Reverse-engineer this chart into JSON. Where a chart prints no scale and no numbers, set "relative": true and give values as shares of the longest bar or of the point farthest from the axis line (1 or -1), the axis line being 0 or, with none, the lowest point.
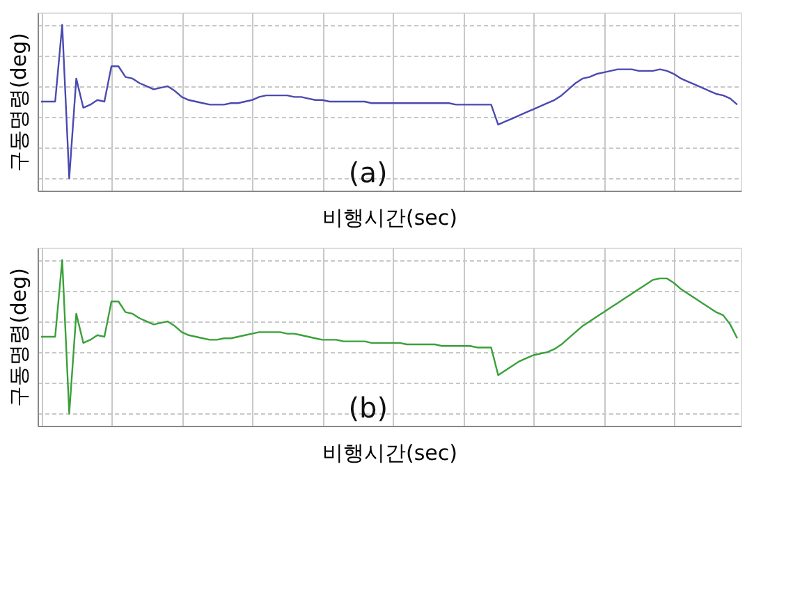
{
  "chart_data": [
    {
      "type": "line",
      "relative": true,
      "ylabel": "구동명령(deg)",
      "xlabel": "비행시간(sec)",
      "annotations": [
        "(a)"
      ],
      "grid": true,
      "tick_labels": false,
      "categories": [
        null,
        null,
        null,
        null,
        null,
        null,
        null,
        null,
        null,
        null,
        null,
        null,
        null,
        null,
        null,
        null,
        null,
        null,
        null,
        null,
        null,
        null,
        null,
        null,
        null,
        null,
        null,
        null,
        null,
        null,
        null,
        null,
        null,
        null,
        null,
        null,
        null,
        null,
        null,
        null,
        null,
        null,
        null,
        null,
        null,
        null,
        null,
        null,
        null,
        null,
        null,
        null,
        null,
        null,
        null,
        null,
        null,
        null,
        null,
        null,
        null,
        null,
        null,
        null,
        null,
        null,
        null,
        null,
        null,
        null,
        null,
        null,
        null,
        null,
        null,
        null,
        null,
        null,
        null,
        null,
        null,
        null,
        null,
        null,
        null,
        null,
        null,
        null,
        null,
        null,
        null,
        null,
        null,
        null,
        null,
        null,
        null,
        null,
        null,
        null
      ],
      "series": [
        {
          "color": "#4a4ab0",
          "values": [
            0.5,
            0.5,
            0.5,
            1.0,
            0.0,
            0.65,
            0.46,
            0.48,
            0.51,
            0.5,
            0.73,
            0.73,
            0.66,
            0.65,
            0.62,
            0.6,
            0.58,
            0.59,
            0.6,
            0.57,
            0.53,
            0.51,
            0.5,
            0.49,
            0.48,
            0.48,
            0.48,
            0.49,
            0.49,
            0.5,
            0.51,
            0.53,
            0.54,
            0.54,
            0.54,
            0.54,
            0.53,
            0.53,
            0.52,
            0.51,
            0.51,
            0.5,
            0.5,
            0.5,
            0.5,
            0.5,
            0.5,
            0.49,
            0.49,
            0.49,
            0.49,
            0.49,
            0.49,
            0.49,
            0.49,
            0.49,
            0.49,
            0.49,
            0.49,
            0.48,
            0.48,
            0.48,
            0.48,
            0.48,
            0.48,
            0.35,
            0.37,
            0.39,
            0.41,
            0.43,
            0.45,
            0.47,
            0.49,
            0.51,
            0.54,
            0.58,
            0.62,
            0.65,
            0.66,
            0.68,
            0.69,
            0.7,
            0.71,
            0.71,
            0.71,
            0.7,
            0.7,
            0.7,
            0.71,
            0.7,
            0.68,
            0.65,
            0.63,
            0.61,
            0.59,
            0.57,
            0.55,
            0.54,
            0.52,
            0.48
          ]
        }
      ]
    },
    {
      "type": "line",
      "relative": true,
      "ylabel": "구동명령(deg)",
      "xlabel": "비행시간(sec)",
      "annotations": [
        "(b)"
      ],
      "grid": true,
      "tick_labels": false,
      "categories": [
        null,
        null,
        null,
        null,
        null,
        null,
        null,
        null,
        null,
        null,
        null,
        null,
        null,
        null,
        null,
        null,
        null,
        null,
        null,
        null,
        null,
        null,
        null,
        null,
        null,
        null,
        null,
        null,
        null,
        null,
        null,
        null,
        null,
        null,
        null,
        null,
        null,
        null,
        null,
        null,
        null,
        null,
        null,
        null,
        null,
        null,
        null,
        null,
        null,
        null,
        null,
        null,
        null,
        null,
        null,
        null,
        null,
        null,
        null,
        null,
        null,
        null,
        null,
        null,
        null,
        null,
        null,
        null,
        null,
        null,
        null,
        null,
        null,
        null,
        null,
        null,
        null,
        null,
        null,
        null,
        null,
        null,
        null,
        null,
        null,
        null,
        null,
        null,
        null,
        null,
        null,
        null,
        null,
        null,
        null,
        null,
        null,
        null,
        null,
        null
      ],
      "series": [
        {
          "color": "#3aa03a",
          "values": [
            0.5,
            0.5,
            0.5,
            1.0,
            0.0,
            0.65,
            0.46,
            0.48,
            0.51,
            0.5,
            0.73,
            0.73,
            0.66,
            0.65,
            0.62,
            0.6,
            0.58,
            0.59,
            0.6,
            0.57,
            0.53,
            0.51,
            0.5,
            0.49,
            0.48,
            0.48,
            0.49,
            0.49,
            0.5,
            0.51,
            0.52,
            0.53,
            0.53,
            0.53,
            0.53,
            0.52,
            0.52,
            0.51,
            0.5,
            0.49,
            0.48,
            0.48,
            0.48,
            0.47,
            0.47,
            0.47,
            0.47,
            0.46,
            0.46,
            0.46,
            0.46,
            0.46,
            0.45,
            0.45,
            0.45,
            0.45,
            0.45,
            0.44,
            0.44,
            0.44,
            0.44,
            0.44,
            0.43,
            0.43,
            0.43,
            0.25,
            0.28,
            0.31,
            0.34,
            0.36,
            0.38,
            0.39,
            0.4,
            0.42,
            0.45,
            0.49,
            0.53,
            0.57,
            0.6,
            0.63,
            0.66,
            0.69,
            0.72,
            0.75,
            0.78,
            0.81,
            0.84,
            0.87,
            0.88,
            0.88,
            0.85,
            0.81,
            0.78,
            0.75,
            0.72,
            0.69,
            0.66,
            0.64,
            0.58,
            0.49
          ]
        }
      ]
    }
  ]
}
